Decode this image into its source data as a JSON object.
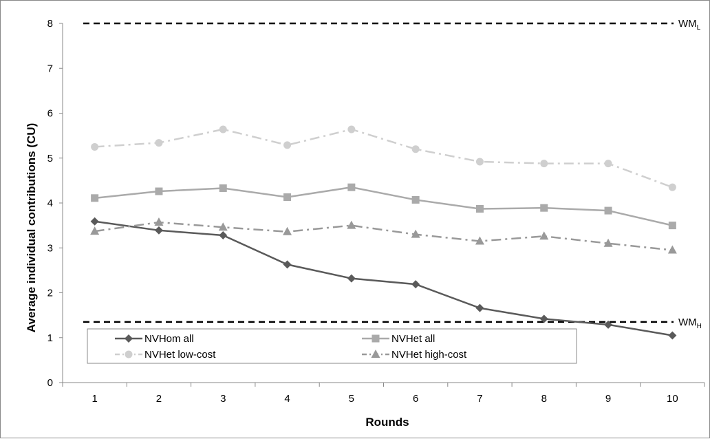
{
  "chart_data": {
    "type": "line",
    "title": "",
    "xlabel": "Rounds",
    "ylabel": "Average individual contributions (CU)",
    "categories": [
      "1",
      "2",
      "3",
      "4",
      "5",
      "6",
      "7",
      "8",
      "9",
      "10"
    ],
    "ylim": [
      0,
      8
    ],
    "yticks": [
      "0",
      "1",
      "2",
      "3",
      "4",
      "5",
      "6",
      "7",
      "8"
    ],
    "grid": false,
    "legend_position": "bottom-left",
    "series": [
      {
        "name": "NVHom all",
        "values": [
          3.59,
          3.39,
          3.28,
          2.63,
          2.32,
          2.19,
          1.66,
          1.42,
          1.29,
          1.05
        ],
        "color": "#5a5a5a",
        "marker": "diamond",
        "dash": "solid"
      },
      {
        "name": "NVHet all",
        "values": [
          4.11,
          4.26,
          4.33,
          4.13,
          4.35,
          4.07,
          3.87,
          3.89,
          3.83,
          3.5
        ],
        "color": "#aaaaaa",
        "marker": "square",
        "dash": "solid"
      },
      {
        "name": "NVHet low-cost",
        "values": [
          5.25,
          5.34,
          5.64,
          5.29,
          5.64,
          5.2,
          4.92,
          4.88,
          4.88,
          4.35
        ],
        "color": "#cfcfcf",
        "marker": "circle",
        "dash": "dashdot"
      },
      {
        "name": "NVHet high-cost",
        "values": [
          3.37,
          3.57,
          3.46,
          3.36,
          3.5,
          3.3,
          3.15,
          3.26,
          3.1,
          2.95
        ],
        "color": "#999999",
        "marker": "triangle",
        "dash": "dashdot"
      }
    ],
    "reference_lines": [
      {
        "value": 8.0,
        "label_main": "WM",
        "label_sub": "L"
      },
      {
        "value": 1.35,
        "label_main": "WM",
        "label_sub": "H"
      }
    ]
  }
}
